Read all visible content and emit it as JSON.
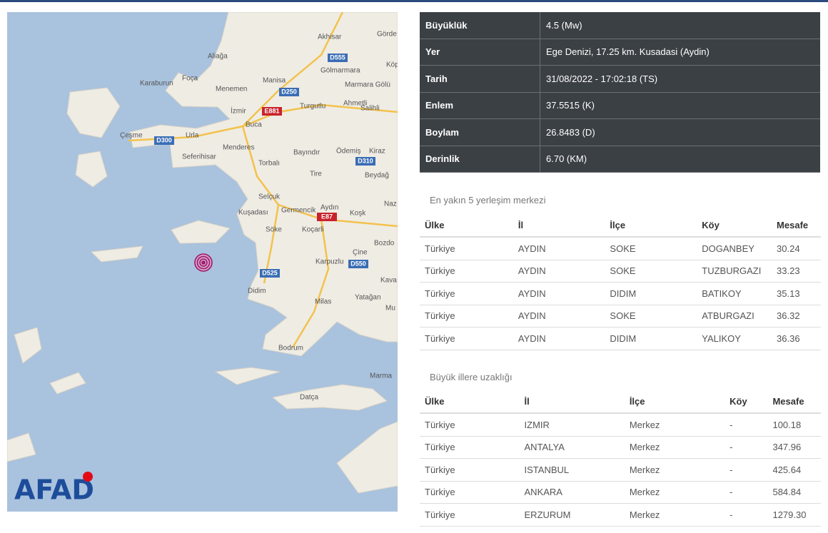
{
  "info": {
    "rows": [
      [
        "Büyüklük",
        "4.5 (Mw)"
      ],
      [
        "Yer",
        "Ege Denizi, 17.25 km. Kusadasi (Aydin)"
      ],
      [
        "Tarih",
        "31/08/2022 - 17:02:18 (TS)"
      ],
      [
        "Enlem",
        "37.5515 (K)"
      ],
      [
        "Boylam",
        "26.8483 (D)"
      ],
      [
        "Derinlik",
        "6.70 (KM)"
      ]
    ]
  },
  "nearest": {
    "caption": "En yakın 5 yerleşim merkezi",
    "header": [
      "Ülke",
      "İl",
      "İlçe",
      "Köy",
      "Mesafe"
    ],
    "rows": [
      [
        "Türkiye",
        "AYDIN",
        "SOKE",
        "DOGANBEY",
        "30.24"
      ],
      [
        "Türkiye",
        "AYDIN",
        "SOKE",
        "TUZBURGAZI",
        "33.23"
      ],
      [
        "Türkiye",
        "AYDIN",
        "DIDIM",
        "BATIKOY",
        "35.13"
      ],
      [
        "Türkiye",
        "AYDIN",
        "SOKE",
        "ATBURGAZI",
        "36.32"
      ],
      [
        "Türkiye",
        "AYDIN",
        "DIDIM",
        "YALIKOY",
        "36.36"
      ]
    ]
  },
  "cities": {
    "caption": "Büyük illere uzaklığı",
    "header": [
      "Ülke",
      "İl",
      "İlçe",
      "Köy",
      "Mesafe"
    ],
    "rows": [
      [
        "Türkiye",
        "IZMIR",
        "Merkez",
        "-",
        "100.18"
      ],
      [
        "Türkiye",
        "ANTALYA",
        "Merkez",
        "-",
        "347.96"
      ],
      [
        "Türkiye",
        "ISTANBUL",
        "Merkez",
        "-",
        "425.64"
      ],
      [
        "Türkiye",
        "ANKARA",
        "Merkez",
        "-",
        "584.84"
      ],
      [
        "Türkiye",
        "ERZURUM",
        "Merkez",
        "-",
        "1279.30"
      ]
    ]
  },
  "map": {
    "logo": "AFAD",
    "labels": [
      "Akhisar",
      "Görde",
      "Aliağa",
      "D555",
      "Manisa",
      "Gölmarmara",
      "Köp",
      "Foça",
      "Karaburun",
      "Menemen",
      "D250",
      "Marmara Gölü",
      "Ahmetli",
      "Salihli",
      "İzmir",
      "Turgutlu",
      "E881",
      "Çeşme",
      "D300",
      "Urla",
      "Buca",
      "Menderes",
      "Bayındır",
      "Ödemiş",
      "Kiraz",
      "Seferihisar",
      "Torbalı",
      "D310",
      "Tire",
      "Beydağ",
      "Selçuk",
      "Aydın",
      "Naz",
      "Kuşadası",
      "Germencik",
      "E87",
      "Koşk",
      "Söke",
      "Koçarli",
      "Bozdo",
      "Çine",
      "Karpuzlu",
      "D550",
      "D525",
      "Kava",
      "Didim",
      "Yatağan",
      "Milas",
      "Mu",
      "Bodrum",
      "Marma",
      "Datça"
    ]
  }
}
